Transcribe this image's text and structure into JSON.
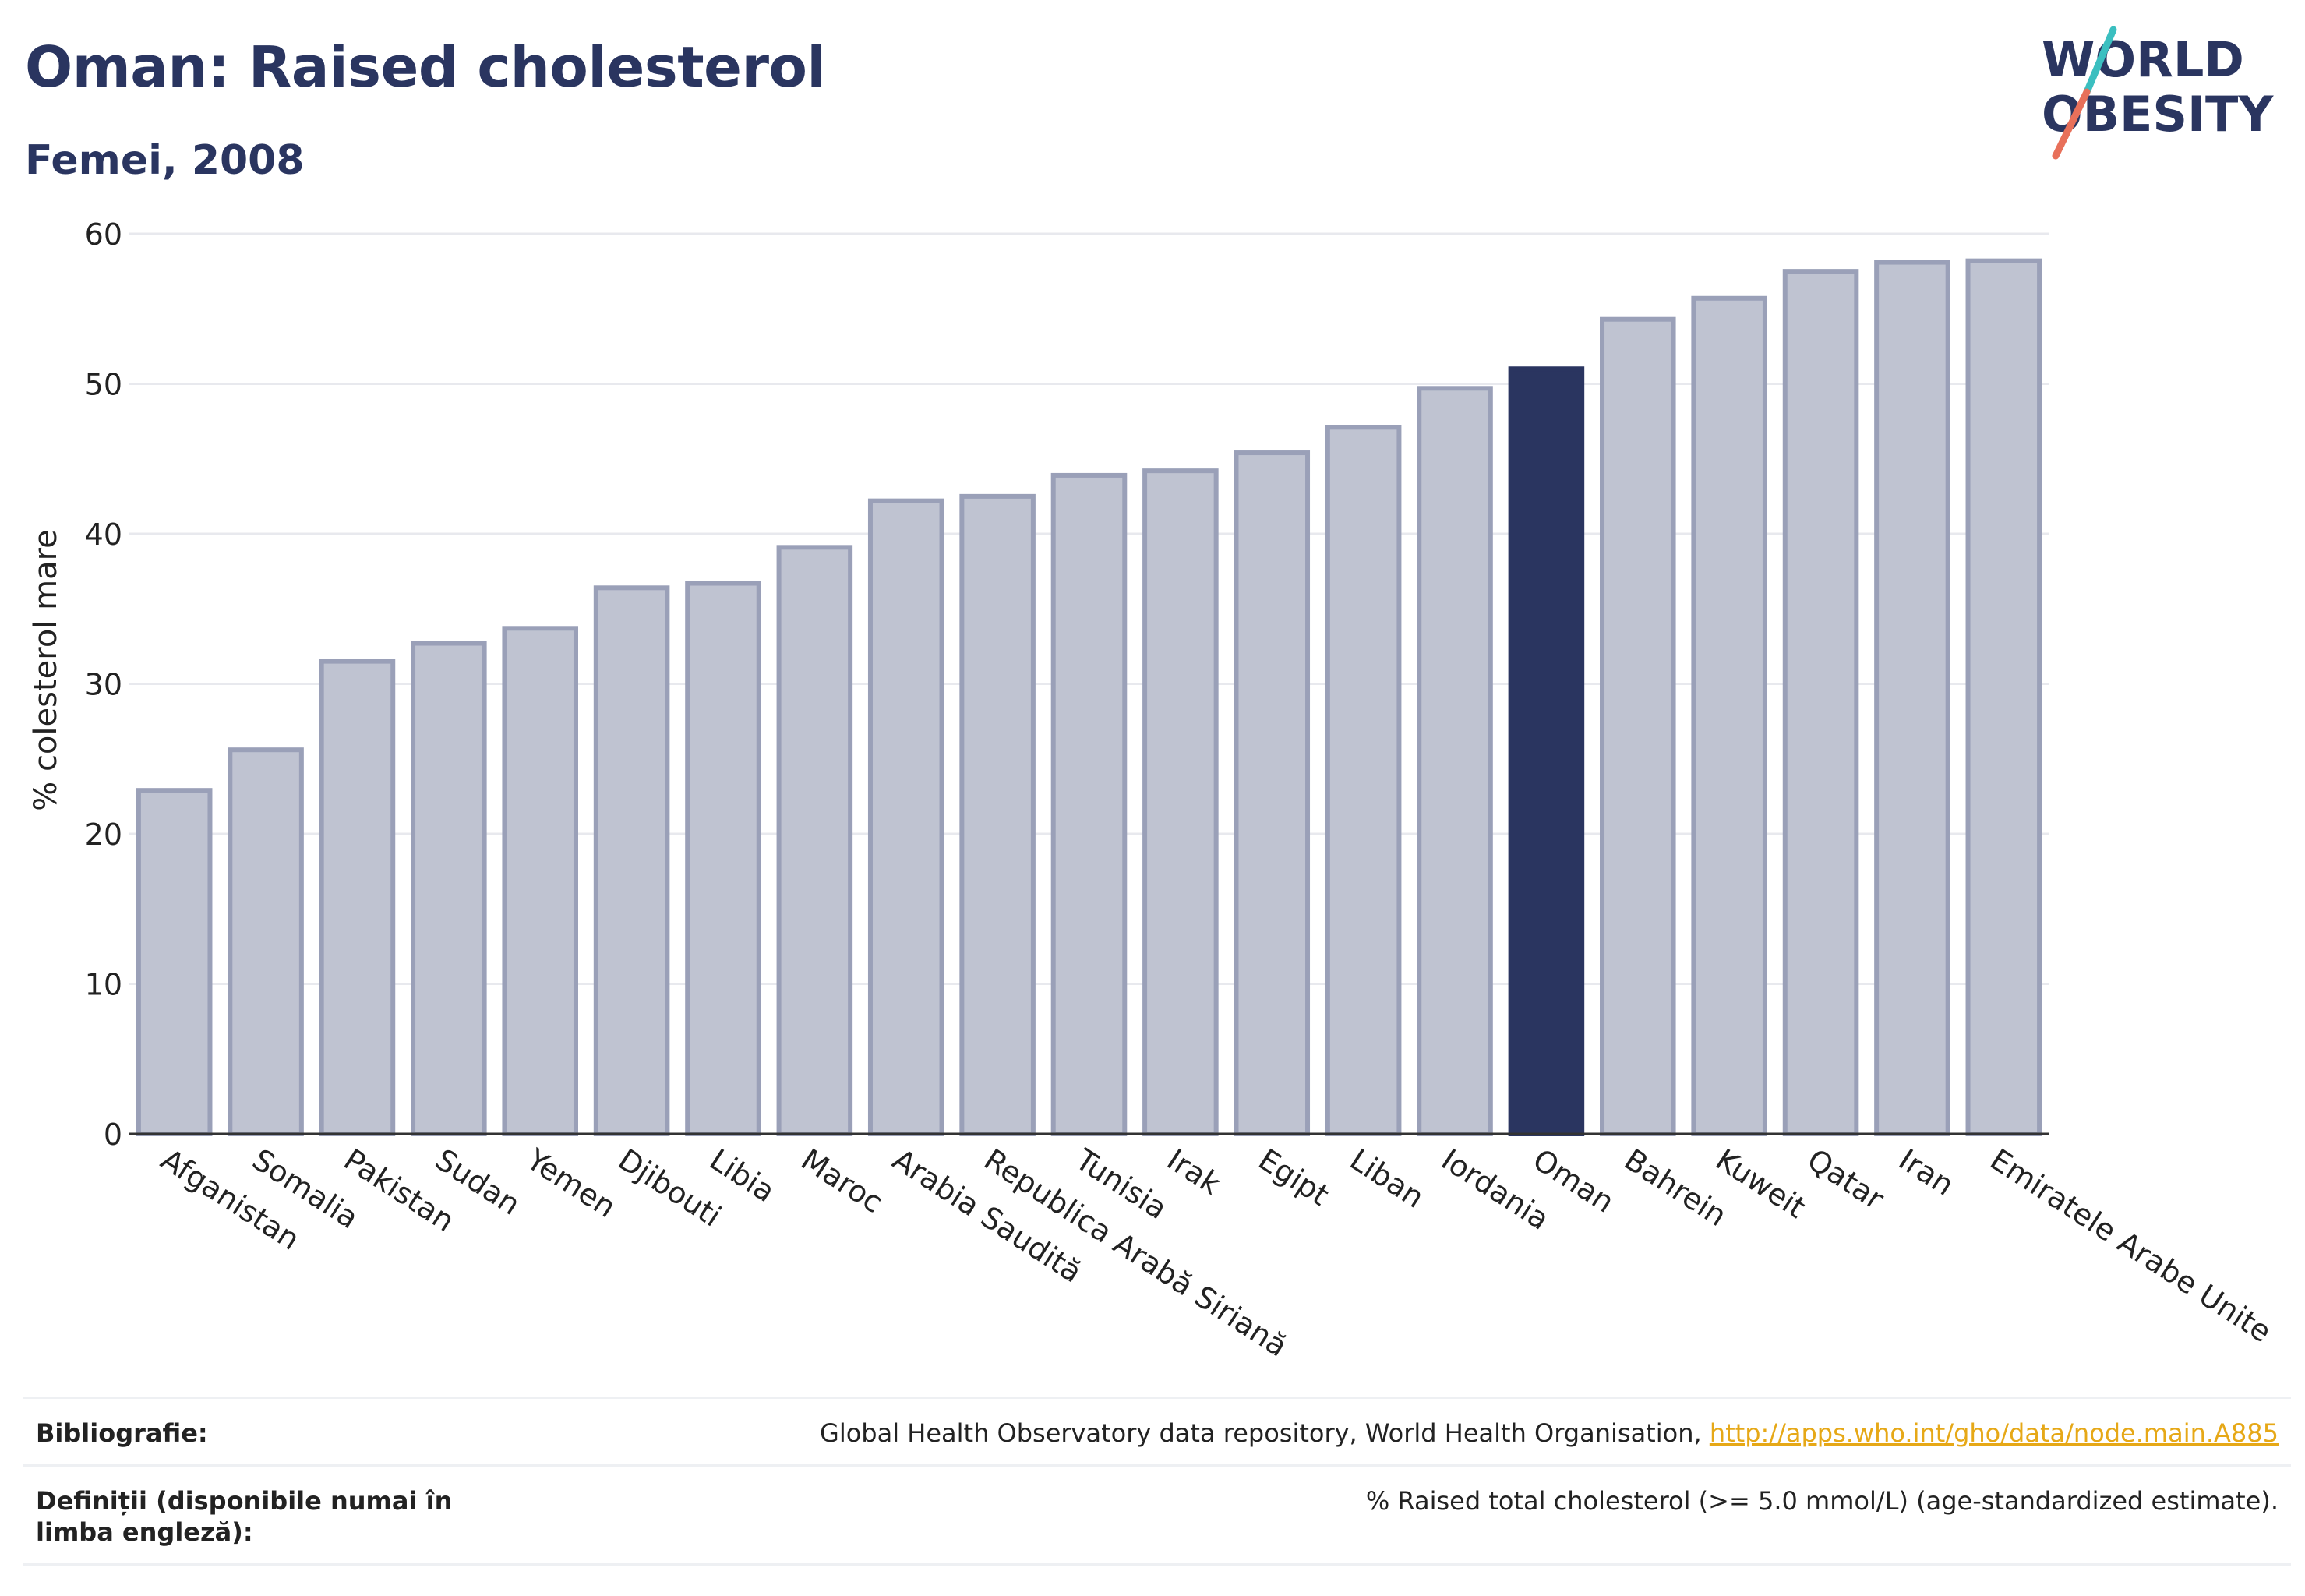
{
  "header": {
    "title": "Oman: Raised cholesterol",
    "subtitle": "Femei, 2008"
  },
  "logo": {
    "line1": "WORLD",
    "line2": "OBESITY",
    "colors": {
      "text": "#2a3560",
      "slash_top": "#3bbfc0",
      "slash_bottom": "#e8705a"
    }
  },
  "chart_data": {
    "type": "bar",
    "ylabel": "% colesterol mare",
    "xlabel": "",
    "ylim": [
      0,
      60
    ],
    "yticks": [
      0,
      10,
      20,
      30,
      40,
      50,
      60
    ],
    "grid": true,
    "highlight": "Oman",
    "colors": {
      "bar": "#bfc3d1",
      "bar_edge": "#9aa0b8",
      "highlight": "#2a3560",
      "grid": "#e8e9ee",
      "axis": "#333333"
    },
    "categories": [
      "Afganistan",
      "Somalia",
      "Pakistan",
      "Sudan",
      "Yemen",
      "Djibouti",
      "Libia",
      "Maroc",
      "Arabia Saudită",
      "Republica Arabă Siriană",
      "Tunisia",
      "Irak",
      "Egipt",
      "Liban",
      "Iordania",
      "Oman",
      "Bahrein",
      "Kuweit",
      "Qatar",
      "Iran",
      "Emiratele Arabe Unite"
    ],
    "values": [
      22.9,
      25.6,
      31.5,
      32.7,
      33.7,
      36.4,
      36.7,
      39.1,
      42.2,
      42.5,
      43.9,
      44.2,
      45.4,
      47.1,
      49.7,
      51.0,
      54.3,
      55.7,
      57.5,
      58.1,
      58.2
    ]
  },
  "sources": {
    "bibliography_label": "Bibliografie:",
    "bibliography_text": "Global Health Observatory data repository, World Health Organisation,",
    "bibliography_link": "http://apps.who.int/gho/data/node.main.A885",
    "definitions_label": "Definiții (disponibile numai în limba engleză):",
    "definitions_text": "% Raised total cholesterol (>= 5.0 mmol/L) (age-standardized estimate)."
  }
}
